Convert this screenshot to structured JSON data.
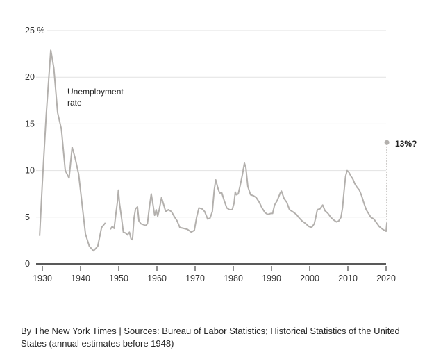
{
  "chart_data": {
    "type": "line",
    "title": "",
    "xlabel": "",
    "ylabel": "",
    "xlim": [
      1930,
      2020
    ],
    "ylim": [
      0,
      25
    ],
    "x_ticks": [
      "1930",
      "1940",
      "1950",
      "1960",
      "1970",
      "1980",
      "1990",
      "2000",
      "2010",
      "2020"
    ],
    "y_ticks": [
      "0",
      "5",
      "10",
      "15",
      "20",
      "25 %"
    ],
    "grid": true,
    "line_color": "#b3b0ad",
    "series_label": "Unemployment rate",
    "series": [
      {
        "segment": "annual",
        "points": [
          [
            1929.3,
            3.0
          ],
          [
            1930,
            8.7
          ],
          [
            1931,
            15.9
          ],
          [
            1932.2,
            22.9
          ],
          [
            1933,
            21
          ],
          [
            1934,
            16.2
          ],
          [
            1935,
            14.4
          ],
          [
            1936,
            10
          ],
          [
            1937,
            9.2
          ],
          [
            1937.8,
            12.5
          ],
          [
            1938.6,
            11.3
          ],
          [
            1939.5,
            9.6
          ],
          [
            1940.5,
            6
          ],
          [
            1941.3,
            3.2
          ],
          [
            1942.3,
            1.9
          ],
          [
            1943.4,
            1.4
          ],
          [
            1944.5,
            1.9
          ],
          [
            1945.5,
            3.9
          ],
          [
            1946.5,
            4.4
          ]
        ]
      },
      {
        "segment": "monthly",
        "points": [
          [
            1947.8,
            3.7
          ],
          [
            1948.3,
            4.0
          ],
          [
            1948.8,
            3.8
          ],
          [
            1949.3,
            5.5
          ],
          [
            1949.7,
            6.8
          ],
          [
            1949.9,
            7.9
          ],
          [
            1950.2,
            6.5
          ],
          [
            1950.7,
            5.0
          ],
          [
            1951.2,
            3.4
          ],
          [
            1951.8,
            3.3
          ],
          [
            1952.3,
            3.1
          ],
          [
            1952.8,
            3.4
          ],
          [
            1953.2,
            2.7
          ],
          [
            1953.6,
            2.6
          ],
          [
            1954.0,
            4.9
          ],
          [
            1954.4,
            5.9
          ],
          [
            1954.9,
            6.1
          ],
          [
            1955.3,
            4.6
          ],
          [
            1955.8,
            4.3
          ],
          [
            1956.5,
            4.2
          ],
          [
            1957.0,
            4.1
          ],
          [
            1957.5,
            4.3
          ],
          [
            1958.0,
            6.0
          ],
          [
            1958.5,
            7.5
          ],
          [
            1958.9,
            6.5
          ],
          [
            1959.4,
            5.2
          ],
          [
            1959.8,
            5.8
          ],
          [
            1960.2,
            5.1
          ],
          [
            1960.6,
            5.8
          ],
          [
            1961.2,
            7.1
          ],
          [
            1961.8,
            6.3
          ],
          [
            1962.3,
            5.6
          ],
          [
            1963.0,
            5.8
          ],
          [
            1963.8,
            5.6
          ],
          [
            1964.5,
            5.1
          ],
          [
            1965.3,
            4.6
          ],
          [
            1966.0,
            3.9
          ],
          [
            1967.0,
            3.8
          ],
          [
            1968.0,
            3.7
          ],
          [
            1969.0,
            3.4
          ],
          [
            1969.8,
            3.6
          ],
          [
            1970.4,
            5.0
          ],
          [
            1971.0,
            6.0
          ],
          [
            1971.8,
            5.9
          ],
          [
            1972.5,
            5.6
          ],
          [
            1973.3,
            4.8
          ],
          [
            1973.9,
            4.9
          ],
          [
            1974.5,
            5.6
          ],
          [
            1975.0,
            7.9
          ],
          [
            1975.4,
            9.0
          ],
          [
            1975.9,
            8.2
          ],
          [
            1976.4,
            7.6
          ],
          [
            1977.0,
            7.6
          ],
          [
            1977.6,
            6.8
          ],
          [
            1978.3,
            6.0
          ],
          [
            1979.0,
            5.8
          ],
          [
            1979.7,
            5.8
          ],
          [
            1980.2,
            6.5
          ],
          [
            1980.5,
            7.7
          ],
          [
            1980.8,
            7.4
          ],
          [
            1981.3,
            7.5
          ],
          [
            1981.8,
            8.4
          ],
          [
            1982.4,
            9.6
          ],
          [
            1982.9,
            10.8
          ],
          [
            1983.3,
            10.3
          ],
          [
            1983.8,
            8.3
          ],
          [
            1984.5,
            7.4
          ],
          [
            1985.3,
            7.3
          ],
          [
            1986.0,
            7.1
          ],
          [
            1986.8,
            6.6
          ],
          [
            1987.5,
            6.0
          ],
          [
            1988.3,
            5.5
          ],
          [
            1989.0,
            5.3
          ],
          [
            1989.8,
            5.4
          ],
          [
            1990.3,
            5.4
          ],
          [
            1990.8,
            6.3
          ],
          [
            1991.5,
            6.8
          ],
          [
            1992.3,
            7.6
          ],
          [
            1992.6,
            7.8
          ],
          [
            1993.3,
            7.0
          ],
          [
            1994.0,
            6.6
          ],
          [
            1994.7,
            5.8
          ],
          [
            1995.5,
            5.6
          ],
          [
            1996.5,
            5.3
          ],
          [
            1997.3,
            4.9
          ],
          [
            1998.0,
            4.6
          ],
          [
            1999.0,
            4.3
          ],
          [
            1999.8,
            4.0
          ],
          [
            2000.5,
            3.9
          ],
          [
            2001.2,
            4.3
          ],
          [
            2001.6,
            5.0
          ],
          [
            2002.0,
            5.8
          ],
          [
            2002.7,
            5.9
          ],
          [
            2003.4,
            6.3
          ],
          [
            2004.0,
            5.7
          ],
          [
            2004.8,
            5.4
          ],
          [
            2005.5,
            5.0
          ],
          [
            2006.3,
            4.7
          ],
          [
            2007.0,
            4.5
          ],
          [
            2007.6,
            4.6
          ],
          [
            2008.2,
            5.0
          ],
          [
            2008.6,
            6.0
          ],
          [
            2009.0,
            7.8
          ],
          [
            2009.4,
            9.4
          ],
          [
            2009.8,
            10.0
          ],
          [
            2010.3,
            9.8
          ],
          [
            2010.8,
            9.4
          ],
          [
            2011.3,
            9.1
          ],
          [
            2011.8,
            8.6
          ],
          [
            2012.4,
            8.2
          ],
          [
            2013.0,
            7.9
          ],
          [
            2013.6,
            7.3
          ],
          [
            2014.2,
            6.5
          ],
          [
            2014.8,
            5.8
          ],
          [
            2015.4,
            5.4
          ],
          [
            2016.0,
            5.0
          ],
          [
            2016.8,
            4.8
          ],
          [
            2017.5,
            4.4
          ],
          [
            2018.2,
            4.0
          ],
          [
            2018.8,
            3.8
          ],
          [
            2019.5,
            3.6
          ],
          [
            2020.0,
            3.5
          ],
          [
            2020.2,
            4.4
          ]
        ]
      }
    ],
    "projection": {
      "x": 2020.2,
      "from": 4.4,
      "to": 13,
      "label": "13%?"
    }
  },
  "footer": {
    "credit": "By The New York Times | Sources: Bureau  of Labor Statistics; Historical Statistics of the United States (annual estimates before 1948)"
  }
}
